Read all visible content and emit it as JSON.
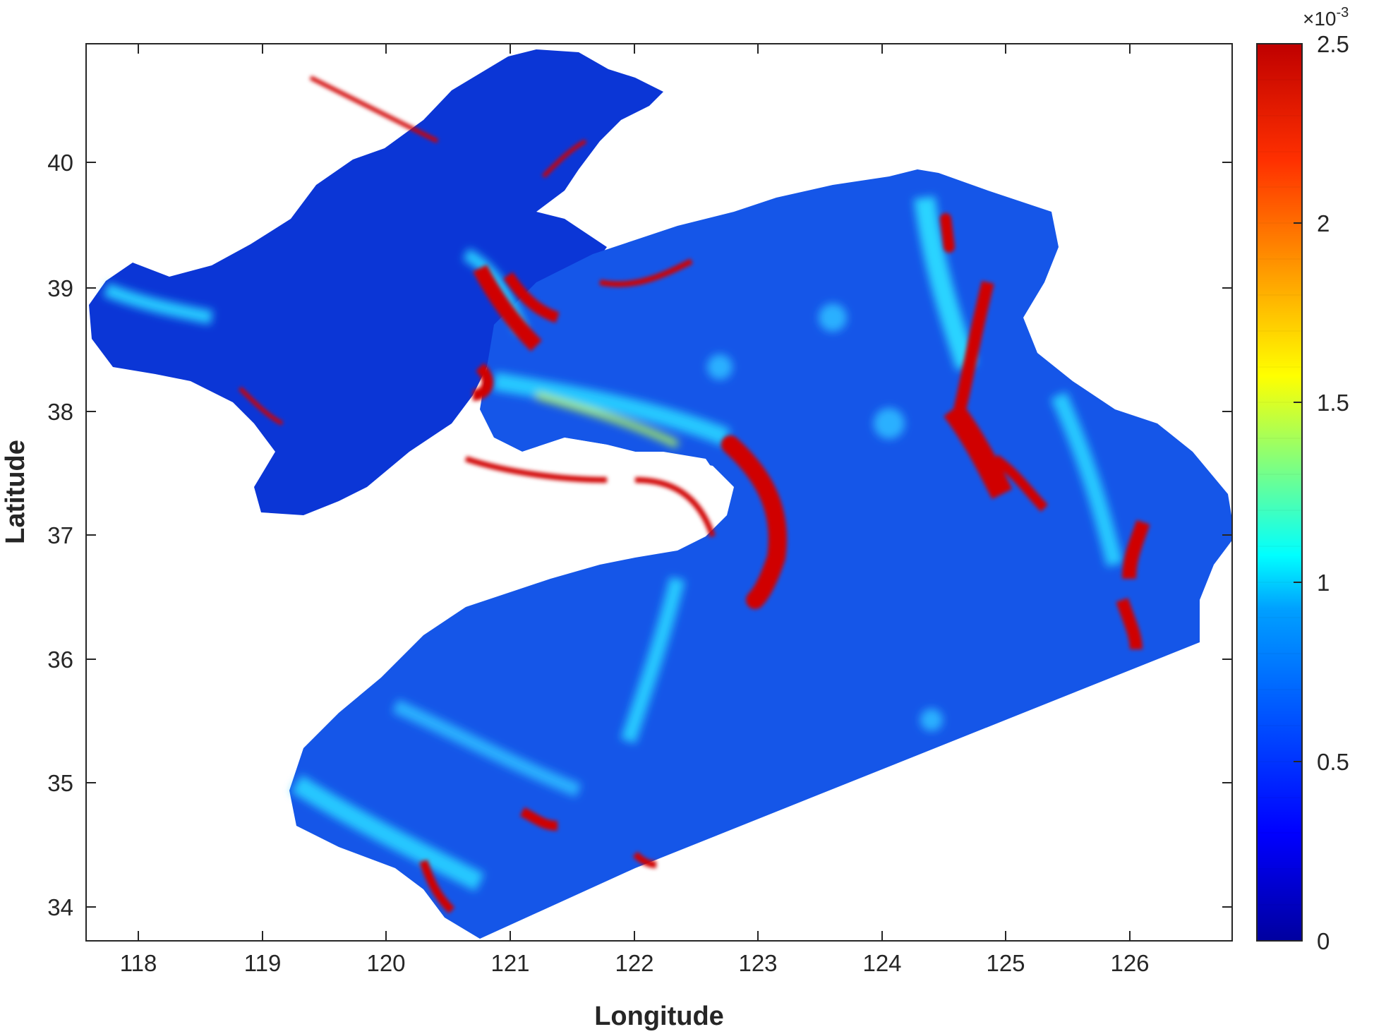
{
  "x_axis": {
    "label": "Longitude",
    "range": [
      117.6,
      126.85
    ],
    "ticks": [
      "118",
      "119",
      "120",
      "121",
      "122",
      "123",
      "124",
      "125",
      "126"
    ]
  },
  "y_axis": {
    "label": "Latitude",
    "range": [
      33.7,
      40.95
    ],
    "ticks": [
      "34",
      "35",
      "36",
      "37",
      "38",
      "39",
      "40"
    ]
  },
  "colorbar": {
    "exponent_prefix": "×10",
    "exponent": "-3",
    "range": [
      0,
      0.0025
    ],
    "levels": 25,
    "ticks": [
      "0",
      "0.5",
      "1",
      "1.5",
      "2",
      "2.5"
    ],
    "colormap": "jet"
  },
  "map": {
    "colors": {
      "background": "#0a3de0",
      "low": "#0a35d8",
      "mid": "#1f8cff",
      "cyan": "#27e6ff",
      "yellow": "#ffee00",
      "high": "#d40000"
    }
  }
}
